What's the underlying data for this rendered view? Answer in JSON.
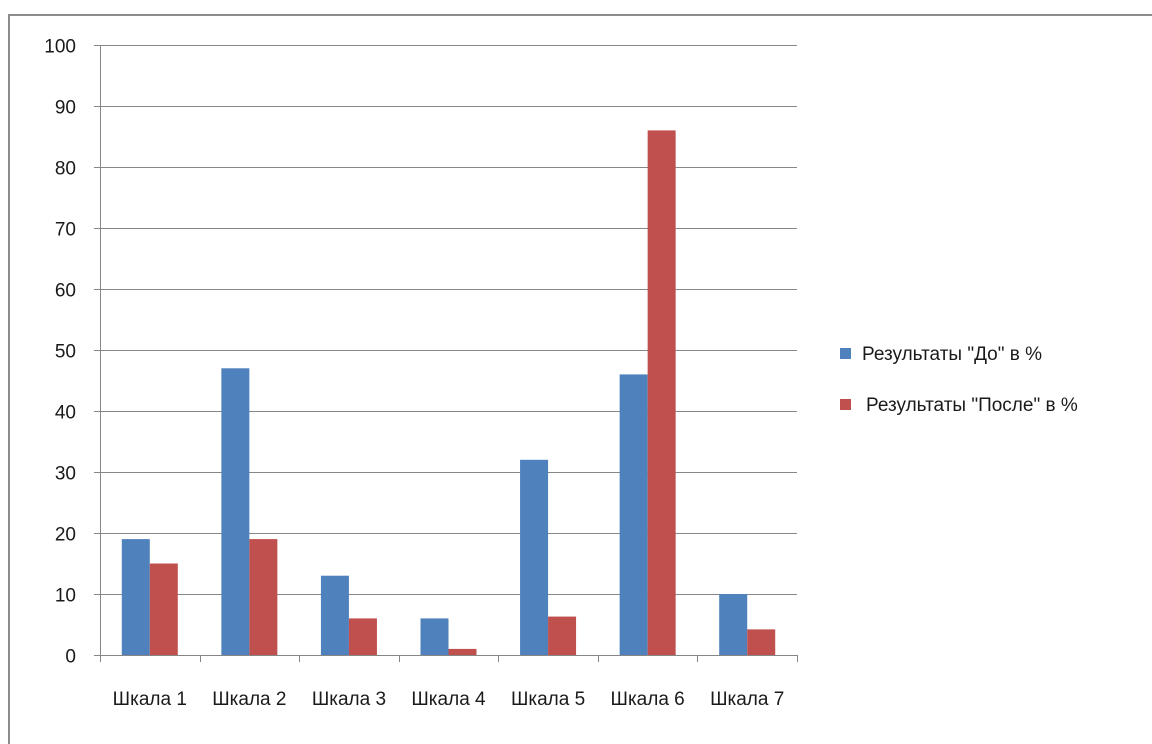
{
  "chart_data": {
    "type": "bar",
    "title": "",
    "xlabel": "",
    "ylabel": "",
    "categories": [
      "Шкала 1",
      "Шкала 2",
      "Шкала 3",
      "Шкала 4",
      "Шкала 5",
      "Шкала 6",
      "Шкала 7"
    ],
    "series": [
      {
        "name": "Результаты \"До\" в %",
        "color": "#4f81bd",
        "values": [
          19,
          47,
          13,
          6,
          32,
          46,
          10
        ]
      },
      {
        "name": "Результаты \"После\" в %",
        "color": "#c0504d",
        "values": [
          15,
          19,
          6,
          1,
          6.3,
          86,
          4.2
        ]
      }
    ],
    "ylim": [
      0,
      100
    ],
    "yticks": [
      0,
      10,
      20,
      30,
      40,
      50,
      60,
      70,
      80,
      90,
      100
    ],
    "grid": true,
    "legend_position": "right"
  }
}
